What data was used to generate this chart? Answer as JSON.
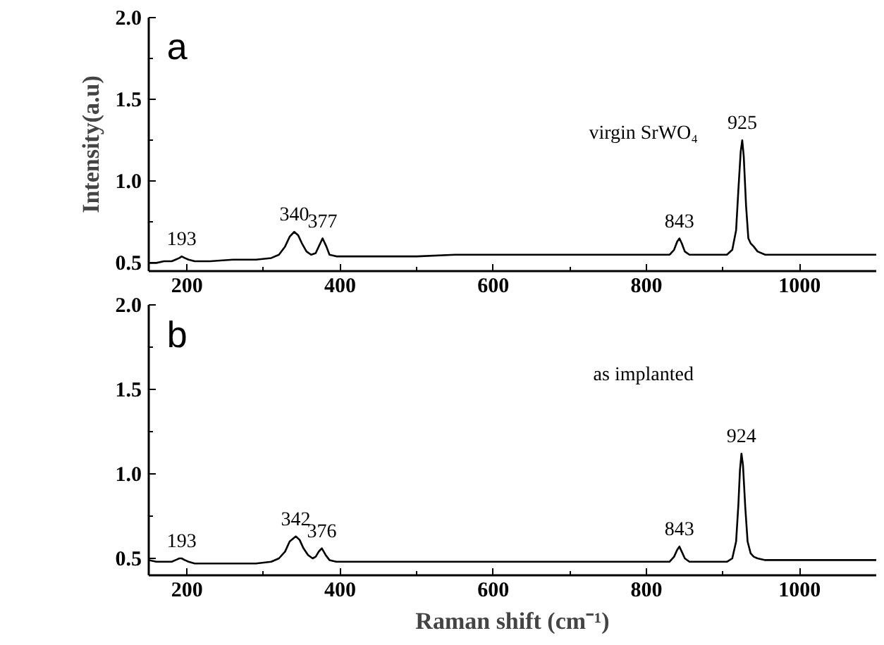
{
  "chart_data": [
    {
      "type": "line",
      "ylabel": "Intensity(a.u)",
      "xlim": [
        150,
        1100
      ],
      "ylim": [
        0.45,
        2.0
      ],
      "xticks": [
        200,
        {
          "value": 300,
          "label": null
        },
        400,
        {
          "value": 500,
          "label": null
        },
        600,
        {
          "value": 700,
          "label": null
        },
        800,
        {
          "value": 900,
          "label": null
        },
        1000
      ],
      "yticks": [
        {
          "value": 0.5,
          "label": "0.5"
        },
        {
          "value": 0.75,
          "label": null
        },
        {
          "value": 1.0,
          "label": "1.0"
        },
        {
          "value": 1.25,
          "label": null
        },
        {
          "value": 1.5,
          "label": "1.5"
        },
        {
          "value": 1.75,
          "label": null
        },
        {
          "value": 2.0,
          "label": "2.0"
        }
      ],
      "grid": false,
      "marker": "none",
      "line_style": "solid",
      "series": [
        {
          "color": "#000000",
          "x": [
            150,
            160,
            170,
            180,
            185,
            190,
            193,
            197,
            202,
            210,
            230,
            260,
            290,
            310,
            320,
            328,
            334,
            340,
            345,
            350,
            356,
            362,
            368,
            372,
            377,
            382,
            386,
            395,
            420,
            460,
            500,
            550,
            600,
            650,
            700,
            750,
            800,
            820,
            830,
            836,
            840,
            843,
            846,
            850,
            856,
            870,
            890,
            905,
            912,
            917,
            920,
            923,
            925,
            927,
            930,
            933,
            936,
            940,
            945,
            955,
            980,
            1020,
            1060,
            1100
          ],
          "values": [
            0.5,
            0.5,
            0.51,
            0.51,
            0.52,
            0.53,
            0.54,
            0.53,
            0.52,
            0.51,
            0.51,
            0.52,
            0.52,
            0.53,
            0.55,
            0.6,
            0.66,
            0.69,
            0.67,
            0.62,
            0.57,
            0.55,
            0.56,
            0.6,
            0.65,
            0.6,
            0.55,
            0.54,
            0.54,
            0.54,
            0.54,
            0.55,
            0.55,
            0.55,
            0.55,
            0.55,
            0.55,
            0.55,
            0.55,
            0.58,
            0.63,
            0.65,
            0.62,
            0.57,
            0.55,
            0.55,
            0.55,
            0.55,
            0.58,
            0.7,
            0.95,
            1.18,
            1.25,
            1.15,
            0.85,
            0.65,
            0.62,
            0.6,
            0.57,
            0.55,
            0.55,
            0.55,
            0.55,
            0.55
          ]
        }
      ],
      "annotations": [
        "a",
        "virgin SrWO₄",
        {
          "text": "193",
          "x": 193,
          "y": 0.54
        },
        {
          "text": "340",
          "x": 340,
          "y": 0.69
        },
        {
          "text": "377",
          "x": 377,
          "y": 0.65
        },
        {
          "text": "843",
          "x": 843,
          "y": 0.65
        },
        {
          "text": "925",
          "x": 925,
          "y": 1.25
        }
      ]
    },
    {
      "type": "line",
      "xlabel": "Raman shift (cm⁻¹)",
      "xlim": [
        150,
        1100
      ],
      "ylim": [
        0.4,
        2.0
      ],
      "xticks": [
        200,
        {
          "value": 300,
          "label": null
        },
        400,
        {
          "value": 500,
          "label": null
        },
        600,
        {
          "value": 700,
          "label": null
        },
        800,
        {
          "value": 900,
          "label": null
        },
        1000
      ],
      "yticks": [
        {
          "value": 0.5,
          "label": "0.5"
        },
        {
          "value": 0.75,
          "label": null
        },
        {
          "value": 1.0,
          "label": "1.0"
        },
        {
          "value": 1.25,
          "label": null
        },
        {
          "value": 1.5,
          "label": "1.5"
        },
        {
          "value": 1.75,
          "label": null
        },
        {
          "value": 2.0,
          "label": "2.0"
        }
      ],
      "grid": false,
      "marker": "none",
      "line_style": "solid",
      "series": [
        {
          "color": "#000000",
          "x": [
            150,
            160,
            170,
            180,
            185,
            190,
            193,
            197,
            202,
            210,
            230,
            260,
            290,
            310,
            320,
            328,
            334,
            342,
            347,
            352,
            358,
            364,
            368,
            372,
            376,
            381,
            386,
            395,
            420,
            460,
            500,
            550,
            600,
            650,
            700,
            750,
            800,
            820,
            830,
            836,
            840,
            843,
            846,
            850,
            856,
            870,
            890,
            905,
            912,
            917,
            920,
            922,
            924,
            926,
            929,
            932,
            936,
            940,
            945,
            955,
            980,
            1020,
            1060,
            1100
          ],
          "values": [
            0.49,
            0.48,
            0.48,
            0.48,
            0.49,
            0.5,
            0.5,
            0.49,
            0.48,
            0.47,
            0.47,
            0.47,
            0.47,
            0.48,
            0.5,
            0.54,
            0.6,
            0.63,
            0.61,
            0.56,
            0.52,
            0.5,
            0.51,
            0.54,
            0.56,
            0.52,
            0.49,
            0.48,
            0.48,
            0.48,
            0.48,
            0.48,
            0.48,
            0.48,
            0.48,
            0.48,
            0.48,
            0.48,
            0.48,
            0.51,
            0.55,
            0.57,
            0.54,
            0.5,
            0.48,
            0.48,
            0.48,
            0.48,
            0.5,
            0.6,
            0.82,
            1.02,
            1.12,
            1.05,
            0.8,
            0.6,
            0.53,
            0.51,
            0.5,
            0.49,
            0.49,
            0.49,
            0.49,
            0.49
          ]
        }
      ],
      "annotations": [
        "b",
        "as implanted",
        {
          "text": "193",
          "x": 193,
          "y": 0.5
        },
        {
          "text": "342",
          "x": 342,
          "y": 0.63
        },
        {
          "text": "376",
          "x": 376,
          "y": 0.56
        },
        {
          "text": "843",
          "x": 843,
          "y": 0.57
        },
        {
          "text": "924",
          "x": 924,
          "y": 1.12
        }
      ]
    }
  ]
}
